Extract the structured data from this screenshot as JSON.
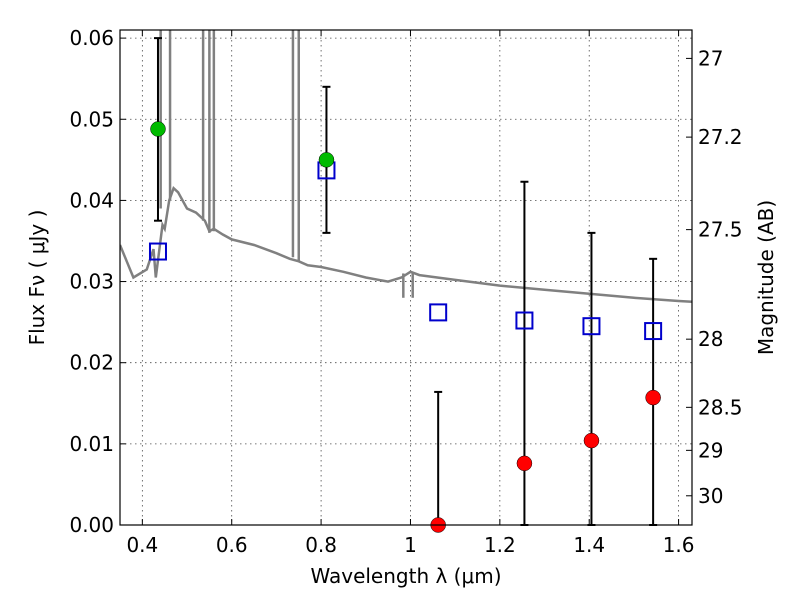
{
  "chart_data": {
    "type": "scatter",
    "xlabel": "Wavelength  λ (μm)",
    "ylabel_left": "Flux  Fν  ( μJy )",
    "ylabel_right": "Magnitude (AB)",
    "xlim": [
      0.35,
      1.63
    ],
    "ylim": [
      0.0,
      0.061
    ],
    "grid": true,
    "x_ticks": [
      {
        "value": 0.4,
        "label": "0.4"
      },
      {
        "value": 0.6,
        "label": "0.6"
      },
      {
        "value": 0.8,
        "label": "0.8"
      },
      {
        "value": 1.0,
        "label": "1"
      },
      {
        "value": 1.2,
        "label": "1.2"
      },
      {
        "value": 1.4,
        "label": "1.4"
      },
      {
        "value": 1.6,
        "label": "1.6"
      }
    ],
    "y_ticks": [
      {
        "value": 0.0,
        "label": "0.00"
      },
      {
        "value": 0.01,
        "label": "0.01"
      },
      {
        "value": 0.02,
        "label": "0.02"
      },
      {
        "value": 0.03,
        "label": "0.03"
      },
      {
        "value": 0.04,
        "label": "0.04"
      },
      {
        "value": 0.05,
        "label": "0.05"
      },
      {
        "value": 0.06,
        "label": "0.06"
      }
    ],
    "y_right_ticks": [
      {
        "flux": 0.0575,
        "label": "27"
      },
      {
        "flux": 0.0478,
        "label": "27.2"
      },
      {
        "flux": 0.0364,
        "label": "27.5"
      },
      {
        "flux": 0.0229,
        "label": "28"
      },
      {
        "flux": 0.0145,
        "label": "28.5"
      },
      {
        "flux": 0.0092,
        "label": "29"
      },
      {
        "flux": 0.0036,
        "label": "30"
      }
    ],
    "series": [
      {
        "kind": "model-spectrum",
        "color": "#808080",
        "x": [
          0.35,
          0.38,
          0.41,
          0.425,
          0.43,
          0.445,
          0.45,
          0.46,
          0.47,
          0.48,
          0.5,
          0.52,
          0.54,
          0.55,
          0.56,
          0.58,
          0.6,
          0.65,
          0.7,
          0.73,
          0.75,
          0.77,
          0.8,
          0.85,
          0.9,
          0.95,
          0.98,
          1.0,
          1.02,
          1.1,
          1.2,
          1.3,
          1.4,
          1.5,
          1.6,
          1.63
        ],
        "y": [
          0.0345,
          0.0305,
          0.0315,
          0.034,
          0.0305,
          0.037,
          0.0365,
          0.04,
          0.0415,
          0.041,
          0.039,
          0.0385,
          0.0375,
          0.0362,
          0.0365,
          0.0358,
          0.0352,
          0.0345,
          0.0335,
          0.0328,
          0.0325,
          0.032,
          0.0318,
          0.0312,
          0.0305,
          0.03,
          0.0305,
          0.0312,
          0.0308,
          0.0302,
          0.0295,
          0.029,
          0.0285,
          0.028,
          0.0276,
          0.0275
        ],
        "spikes": [
          {
            "x": 0.441,
            "bottom": 0.039,
            "top": 0.061
          },
          {
            "x": 0.462,
            "bottom": 0.04,
            "top": 0.061
          },
          {
            "x": 0.536,
            "bottom": 0.0375,
            "top": 0.061
          },
          {
            "x": 0.55,
            "bottom": 0.036,
            "top": 0.061
          },
          {
            "x": 0.56,
            "bottom": 0.0362,
            "top": 0.061
          },
          {
            "x": 0.737,
            "bottom": 0.033,
            "top": 0.061
          },
          {
            "x": 0.75,
            "bottom": 0.0325,
            "top": 0.061
          },
          {
            "x": 0.984,
            "bottom": 0.028,
            "top": 0.031
          },
          {
            "x": 1.005,
            "bottom": 0.028,
            "top": 0.031
          }
        ]
      },
      {
        "kind": "model-band-flux",
        "marker": "open-square",
        "color": "#0000cc",
        "x": [
          0.435,
          0.812,
          1.062,
          1.255,
          1.405,
          1.543
        ],
        "y": [
          0.0337,
          0.0437,
          0.0262,
          0.0252,
          0.0245,
          0.0239
        ]
      },
      {
        "kind": "detections",
        "marker": "filled-circle",
        "color": "#00bb00",
        "x": [
          0.435,
          0.812
        ],
        "y": [
          0.0488,
          0.045
        ],
        "err_lo": [
          0.0375,
          0.036
        ],
        "err_hi": [
          0.06,
          0.054
        ]
      },
      {
        "kind": "non-detections",
        "marker": "filled-circle",
        "color": "#ff0000",
        "x": [
          1.062,
          1.255,
          1.405,
          1.543
        ],
        "y": [
          0.0,
          0.0076,
          0.0104,
          0.0157
        ],
        "err_lo": [
          0.0,
          0.0,
          0.0,
          0.0
        ],
        "err_hi": [
          0.0164,
          0.0423,
          0.036,
          0.0328
        ]
      }
    ]
  }
}
